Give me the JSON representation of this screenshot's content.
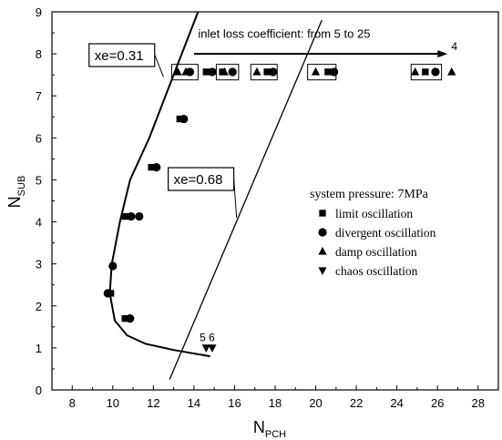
{
  "chart_data": {
    "type": "scatter",
    "xlabel_main": "N",
    "xlabel_sub": "PCH",
    "ylabel_main": "N",
    "ylabel_sub": "SUB",
    "xlim": [
      7,
      29
    ],
    "ylim": [
      0,
      9
    ],
    "xticks": [
      8,
      10,
      12,
      14,
      16,
      18,
      20,
      22,
      24,
      26,
      28
    ],
    "yticks": [
      0,
      1,
      2,
      3,
      4,
      5,
      6,
      7,
      8,
      9
    ],
    "grid": false,
    "legend": {
      "placement": "center-right",
      "title": "system pressure: 7MPa",
      "entries": [
        {
          "marker": "square",
          "label": "limit oscillation"
        },
        {
          "marker": "circle",
          "label": "divergent oscillation"
        },
        {
          "marker": "triangle-up",
          "label": "damp oscillation"
        },
        {
          "marker": "triangle-down",
          "label": "chaos oscillation"
        }
      ]
    },
    "curves": [
      {
        "name": "xe=0.31",
        "points": [
          [
            14.8,
            0.8
          ],
          [
            13.0,
            0.95
          ],
          [
            11.6,
            1.1
          ],
          [
            10.7,
            1.3
          ],
          [
            10.1,
            1.65
          ],
          [
            9.85,
            2.3
          ],
          [
            9.95,
            3.0
          ],
          [
            10.35,
            4.0
          ],
          [
            10.85,
            5.0
          ],
          [
            11.8,
            6.0
          ],
          [
            12.6,
            7.0
          ],
          [
            13.4,
            8.0
          ],
          [
            14.2,
            9.0
          ]
        ]
      },
      {
        "name": "xe=0.68",
        "points": [
          [
            12.8,
            0.25
          ],
          [
            20.3,
            8.8
          ]
        ]
      }
    ],
    "curve_labels": [
      {
        "text": "xe=0.31",
        "x": 9.1,
        "y": 7.85,
        "arrow_to": [
          12.5,
          7.45
        ]
      },
      {
        "text": "xe=0.68",
        "x": 13.0,
        "y": 4.9,
        "arrow_to": [
          16.1,
          4.1
        ]
      }
    ],
    "annotation": {
      "text": "inlet loss coefficient: from 5 to 25",
      "x": 14.2,
      "y": 8.3,
      "arrow_from": [
        14.0,
        8.0
      ],
      "arrow_to": [
        26.5,
        8.0
      ],
      "end_label": "4"
    },
    "point_labels": [
      {
        "text": "5 6",
        "x": 14.55,
        "y": 1.25
      }
    ],
    "boxes": [
      {
        "x0": 12.9,
        "x1": 14.2,
        "y0": 7.38,
        "y1": 7.75
      },
      {
        "x0": 15.1,
        "x1": 16.2,
        "y0": 7.38,
        "y1": 7.75
      },
      {
        "x0": 16.8,
        "x1": 18.1,
        "y0": 7.38,
        "y1": 7.75
      },
      {
        "x0": 19.6,
        "x1": 21.0,
        "y0": 7.38,
        "y1": 7.75
      },
      {
        "x0": 24.7,
        "x1": 26.2,
        "y0": 7.38,
        "y1": 7.75
      }
    ],
    "series": [
      {
        "marker": "square",
        "points": [
          [
            14.6,
            7.57
          ],
          [
            15.4,
            7.57
          ],
          [
            17.6,
            7.57
          ],
          [
            20.6,
            7.57
          ],
          [
            25.4,
            7.57
          ],
          [
            10.6,
            4.13
          ],
          [
            10.6,
            1.7
          ],
          [
            11.9,
            5.3
          ],
          [
            13.3,
            6.45
          ],
          [
            9.9,
            2.3
          ]
        ]
      },
      {
        "marker": "circle",
        "points": [
          [
            13.8,
            7.57
          ],
          [
            14.9,
            7.57
          ],
          [
            15.9,
            7.57
          ],
          [
            17.9,
            7.57
          ],
          [
            20.9,
            7.57
          ],
          [
            25.9,
            7.57
          ],
          [
            10.9,
            4.13
          ],
          [
            11.3,
            4.13
          ],
          [
            10.0,
            2.95
          ],
          [
            9.75,
            2.3
          ],
          [
            10.85,
            1.7
          ],
          [
            12.15,
            5.3
          ],
          [
            13.5,
            6.45
          ]
        ]
      },
      {
        "marker": "triangle-up",
        "points": [
          [
            13.2,
            7.57
          ],
          [
            13.6,
            7.57
          ],
          [
            15.5,
            7.57
          ],
          [
            17.1,
            7.57
          ],
          [
            20.0,
            7.57
          ],
          [
            24.9,
            7.57
          ],
          [
            26.7,
            7.57
          ]
        ]
      },
      {
        "marker": "triangle-down",
        "points": [
          [
            14.6,
            1.0
          ],
          [
            14.9,
            1.0
          ]
        ]
      }
    ]
  }
}
